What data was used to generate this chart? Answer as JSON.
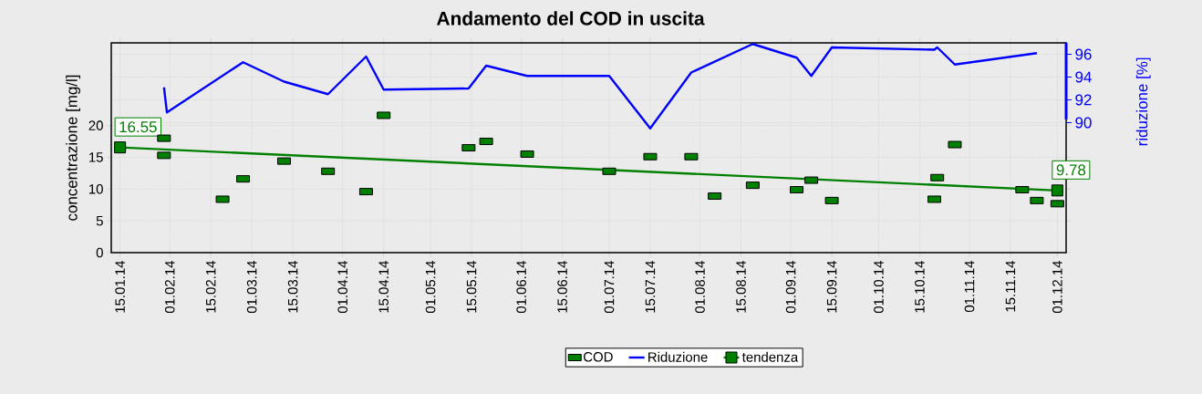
{
  "chart_data": {
    "type": "scatter",
    "title": "Andamento del COD in uscita",
    "ylabel": "concentrazione [mg/l]",
    "y2label": "riduzione [%]",
    "xlim": [
      "2014-01-12",
      "2014-12-04"
    ],
    "xticks": [
      {
        "value": "2014-01-15",
        "label": "15.01.14"
      },
      {
        "value": "2014-02-01",
        "label": "01.02.14"
      },
      {
        "value": "2014-02-15",
        "label": "15.02.14"
      },
      {
        "value": "2014-03-01",
        "label": "01.03.14"
      },
      {
        "value": "2014-03-15",
        "label": "15.03.14"
      },
      {
        "value": "2014-04-01",
        "label": "01.04.14"
      },
      {
        "value": "2014-04-15",
        "label": "15.04.14"
      },
      {
        "value": "2014-05-01",
        "label": "01.05.14"
      },
      {
        "value": "2014-05-15",
        "label": "15.05.14"
      },
      {
        "value": "2014-06-01",
        "label": "01.06.14"
      },
      {
        "value": "2014-06-15",
        "label": "15.06.14"
      },
      {
        "value": "2014-07-01",
        "label": "01.07.14"
      },
      {
        "value": "2014-07-15",
        "label": "15.07.14"
      },
      {
        "value": "2014-08-01",
        "label": "01.08.14"
      },
      {
        "value": "2014-08-15",
        "label": "15.08.14"
      },
      {
        "value": "2014-09-01",
        "label": "01.09.14"
      },
      {
        "value": "2014-09-15",
        "label": "15.09.14"
      },
      {
        "value": "2014-10-01",
        "label": "01.10.14"
      },
      {
        "value": "2014-10-15",
        "label": "15.10.14"
      },
      {
        "value": "2014-11-01",
        "label": "01.11.14"
      },
      {
        "value": "2014-11-15",
        "label": "15.11.14"
      },
      {
        "value": "2014-12-01",
        "label": "01.12.14"
      }
    ],
    "ylim": [
      0,
      33
    ],
    "yticks": [
      0,
      5,
      10,
      15,
      20
    ],
    "y2lim": [
      78.6,
      97
    ],
    "y2ticks": [
      90,
      92,
      94,
      96
    ],
    "grid": true,
    "legend": "bottom",
    "series": [
      {
        "name": "COD",
        "marker": "square",
        "color": "#008000",
        "x": [
          "2014-01-30",
          "2014-01-30",
          "2014-02-19",
          "2014-02-26",
          "2014-03-12",
          "2014-03-27",
          "2014-04-09",
          "2014-04-15",
          "2014-05-14",
          "2014-05-20",
          "2014-06-03",
          "2014-07-01",
          "2014-07-15",
          "2014-07-29",
          "2014-08-06",
          "2014-08-19",
          "2014-09-03",
          "2014-09-08",
          "2014-09-15",
          "2014-10-20",
          "2014-10-21",
          "2014-10-27",
          "2014-11-19",
          "2014-11-24",
          "2014-12-01"
        ],
        "values": [
          18.0,
          15.3,
          8.4,
          11.6,
          14.4,
          12.8,
          9.6,
          21.6,
          16.5,
          17.5,
          15.5,
          12.8,
          15.1,
          15.1,
          8.9,
          10.6,
          9.9,
          11.4,
          8.2,
          8.4,
          11.8,
          17.0,
          9.9,
          8.2,
          7.7
        ]
      },
      {
        "name": "Riduzione",
        "type": "line",
        "axis": "y2",
        "marker": "none",
        "color": "#0000ff",
        "x": [
          "2014-01-30",
          "2014-01-31",
          "2014-02-26",
          "2014-03-12",
          "2014-03-27",
          "2014-04-09",
          "2014-04-15",
          "2014-05-14",
          "2014-05-20",
          "2014-06-03",
          "2014-07-01",
          "2014-07-15",
          "2014-07-29",
          "2014-08-19",
          "2014-09-03",
          "2014-09-08",
          "2014-09-15",
          "2014-10-20",
          "2014-10-21",
          "2014-10-27",
          "2014-11-24"
        ],
        "values": [
          93.1,
          90.9,
          95.3,
          93.6,
          92.5,
          95.8,
          92.9,
          93.0,
          95.0,
          94.1,
          94.1,
          89.5,
          94.4,
          96.9,
          95.7,
          94.1,
          96.6,
          96.4,
          96.6,
          95.1,
          96.1
        ]
      },
      {
        "name": "tendenza",
        "type": "line",
        "marker": "square",
        "color": "#008000",
        "x": [
          "2014-01-15",
          "2014-12-01"
        ],
        "values": [
          16.55,
          9.78
        ],
        "value_labels": [
          "16.55",
          "9.78"
        ]
      }
    ]
  }
}
